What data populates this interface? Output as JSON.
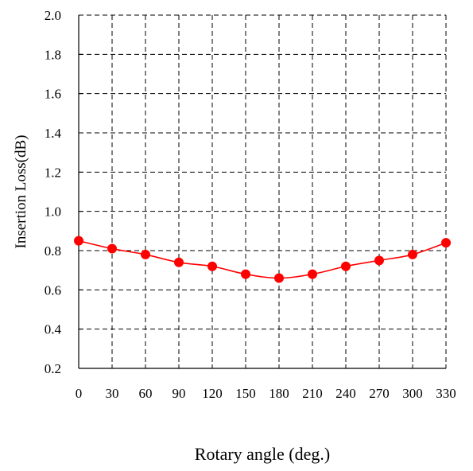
{
  "chart_data": {
    "type": "line",
    "xlabel": "Rotary angle (deg.)",
    "ylabel": "Insertion Loss(dB)",
    "x": [
      0,
      30,
      60,
      90,
      120,
      150,
      180,
      210,
      240,
      270,
      300,
      330
    ],
    "series": [
      {
        "values": [
          0.85,
          0.81,
          0.78,
          0.74,
          0.72,
          0.68,
          0.66,
          0.68,
          0.72,
          0.75,
          0.78,
          0.84
        ],
        "color": "#ff0000",
        "marker": "circle",
        "line": "smooth"
      }
    ],
    "xlim": [
      0,
      330
    ],
    "ylim": [
      0.2,
      2.0
    ],
    "xticks": [
      "0",
      "30",
      "60",
      "90",
      "120",
      "150",
      "180",
      "210",
      "240",
      "270",
      "300",
      "330"
    ],
    "yticks": [
      "0.2",
      "0.4",
      "0.6",
      "0.8",
      "1.0",
      "1.2",
      "1.4",
      "1.6",
      "1.8",
      "2.0"
    ],
    "grid": "dashed",
    "legend": "none"
  }
}
